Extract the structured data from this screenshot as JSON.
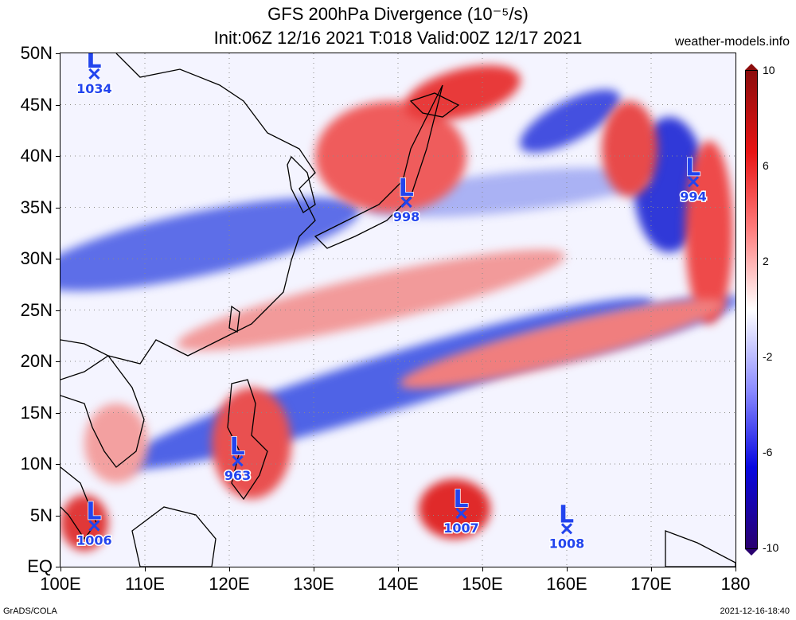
{
  "title": {
    "line1": "GFS 200hPa Divergence (10⁻⁵/s)",
    "line2": "Init:06Z 12/16 2021 T:018 Valid:00Z 12/17 2021"
  },
  "credit": "weather-models.info",
  "map": {
    "lat_labels": [
      "50N",
      "45N",
      "40N",
      "35N",
      "30N",
      "25N",
      "20N",
      "15N",
      "10N",
      "5N",
      "EQ"
    ],
    "lat_values": [
      50,
      45,
      40,
      35,
      30,
      25,
      20,
      15,
      10,
      5,
      0
    ],
    "lon_labels": [
      "100E",
      "110E",
      "120E",
      "130E",
      "140E",
      "150E",
      "160E",
      "170E",
      "180"
    ],
    "lon_values": [
      100,
      110,
      120,
      130,
      140,
      150,
      160,
      170,
      180
    ],
    "lat_range": [
      0,
      50
    ],
    "lon_range": [
      100,
      180
    ],
    "lows": [
      {
        "symbol": "L",
        "pressure": "1034",
        "lon": 104,
        "lat": 48
      },
      {
        "symbol": "L",
        "pressure": "998",
        "lon": 141,
        "lat": 35.5
      },
      {
        "symbol": "L",
        "pressure": "994",
        "lon": 175,
        "lat": 37.5
      },
      {
        "symbol": "L",
        "pressure": "963",
        "lon": 121,
        "lat": 10.3
      },
      {
        "symbol": "L",
        "pressure": "1006",
        "lon": 104,
        "lat": 4
      },
      {
        "symbol": "L",
        "pressure": "1007",
        "lon": 147.5,
        "lat": 5.2
      },
      {
        "symbol": "L",
        "pressure": "1008",
        "lon": 160,
        "lat": 3.7
      }
    ]
  },
  "colorbar": {
    "labels": [
      "10",
      "6",
      "2",
      "-2",
      "-6",
      "-10"
    ],
    "values": [
      10,
      6,
      2,
      -2,
      -6,
      -10
    ],
    "colors": {
      "max": "#8b0d0d",
      "high": "#e81414",
      "mid_high": "#ff7c7c",
      "zero": "#ffffff",
      "mid_low": "#8a8aff",
      "low": "#0808e0",
      "min": "#2a0070"
    }
  },
  "footer": {
    "left": "GrADS/COLA",
    "right": "2021-12-16-18:40"
  }
}
